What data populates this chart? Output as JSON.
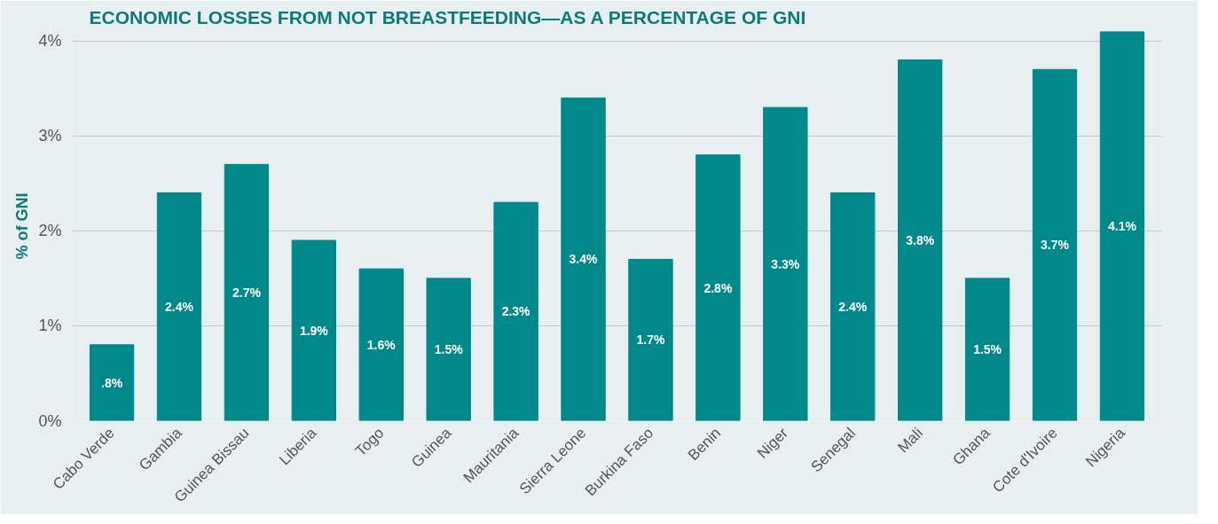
{
  "chart_data": {
    "type": "bar",
    "title": "ECONOMIC LOSSES FROM NOT BREASTFEEDING—AS A PERCENTAGE OF GNI",
    "ylabel": "% of GNI",
    "categories": [
      "Cabo Verde",
      "Gambia",
      "Guinea Bissau",
      "Liberia",
      "Togo",
      "Guinea",
      "Mauritania",
      "Sierra Leone",
      "Burkina Faso",
      "Benin",
      "Niger",
      "Senegal",
      "Mali",
      "Ghana",
      "Cote d'Ivoire",
      "Nigeria"
    ],
    "values": [
      0.8,
      2.4,
      2.7,
      1.9,
      1.6,
      1.5,
      2.3,
      3.4,
      1.7,
      2.8,
      3.3,
      2.4,
      3.8,
      1.5,
      3.7,
      4.1
    ],
    "value_labels": [
      ".8%",
      "2.4%",
      "2.7%",
      "1.9%",
      "1.6%",
      "1.5%",
      "2.3%",
      "3.4%",
      "1.7%",
      "2.8%",
      "3.3%",
      "2.4%",
      "3.8%",
      "1.5%",
      "3.7%",
      "4.1%"
    ],
    "color": "#00898a",
    "ylim": [
      0,
      4.1
    ],
    "yticks": [
      {
        "value": 0,
        "label": "0%"
      },
      {
        "value": 1,
        "label": "1%"
      },
      {
        "value": 2,
        "label": "2%"
      },
      {
        "value": 3,
        "label": "3%"
      },
      {
        "value": 4,
        "label": "4%"
      }
    ],
    "grid": "y"
  }
}
